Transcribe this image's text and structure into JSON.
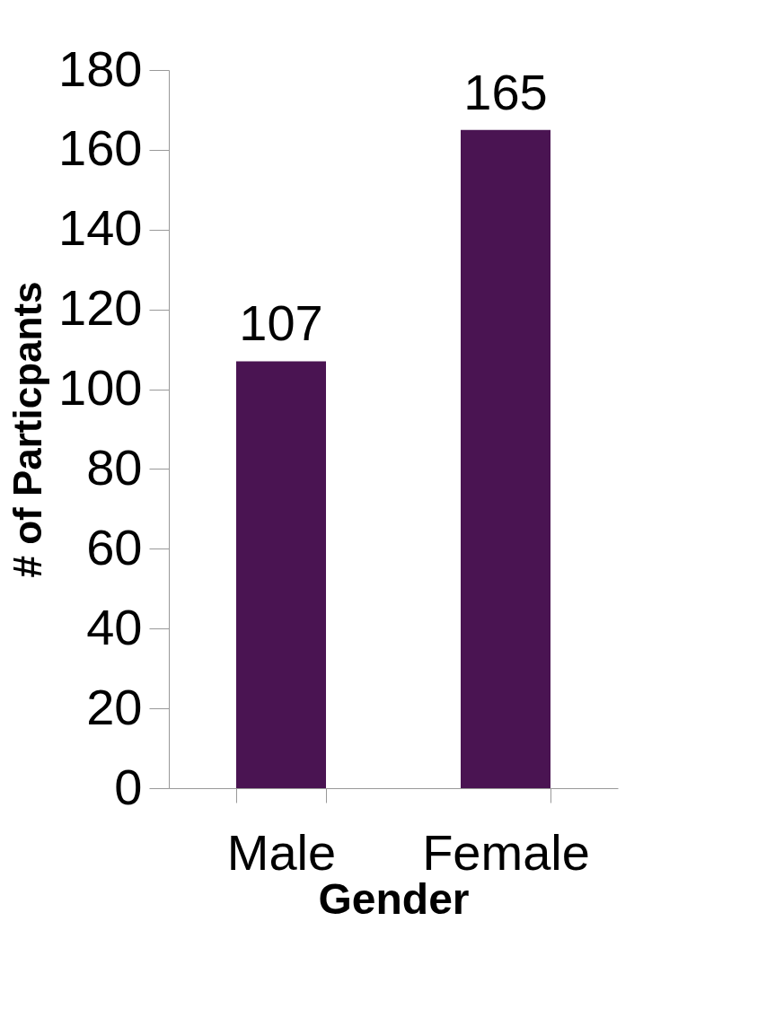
{
  "chart_data": {
    "type": "bar",
    "xlabel": "Gender",
    "ylabel": "# of Particpants",
    "categories": [
      "Male",
      "Female"
    ],
    "values": [
      107,
      165
    ],
    "color": "#4a1452",
    "ylim": [
      0,
      180
    ],
    "yticks": [
      0,
      20,
      40,
      60,
      80,
      100,
      120,
      140,
      160,
      180
    ],
    "data_labels": true,
    "grid": false
  }
}
